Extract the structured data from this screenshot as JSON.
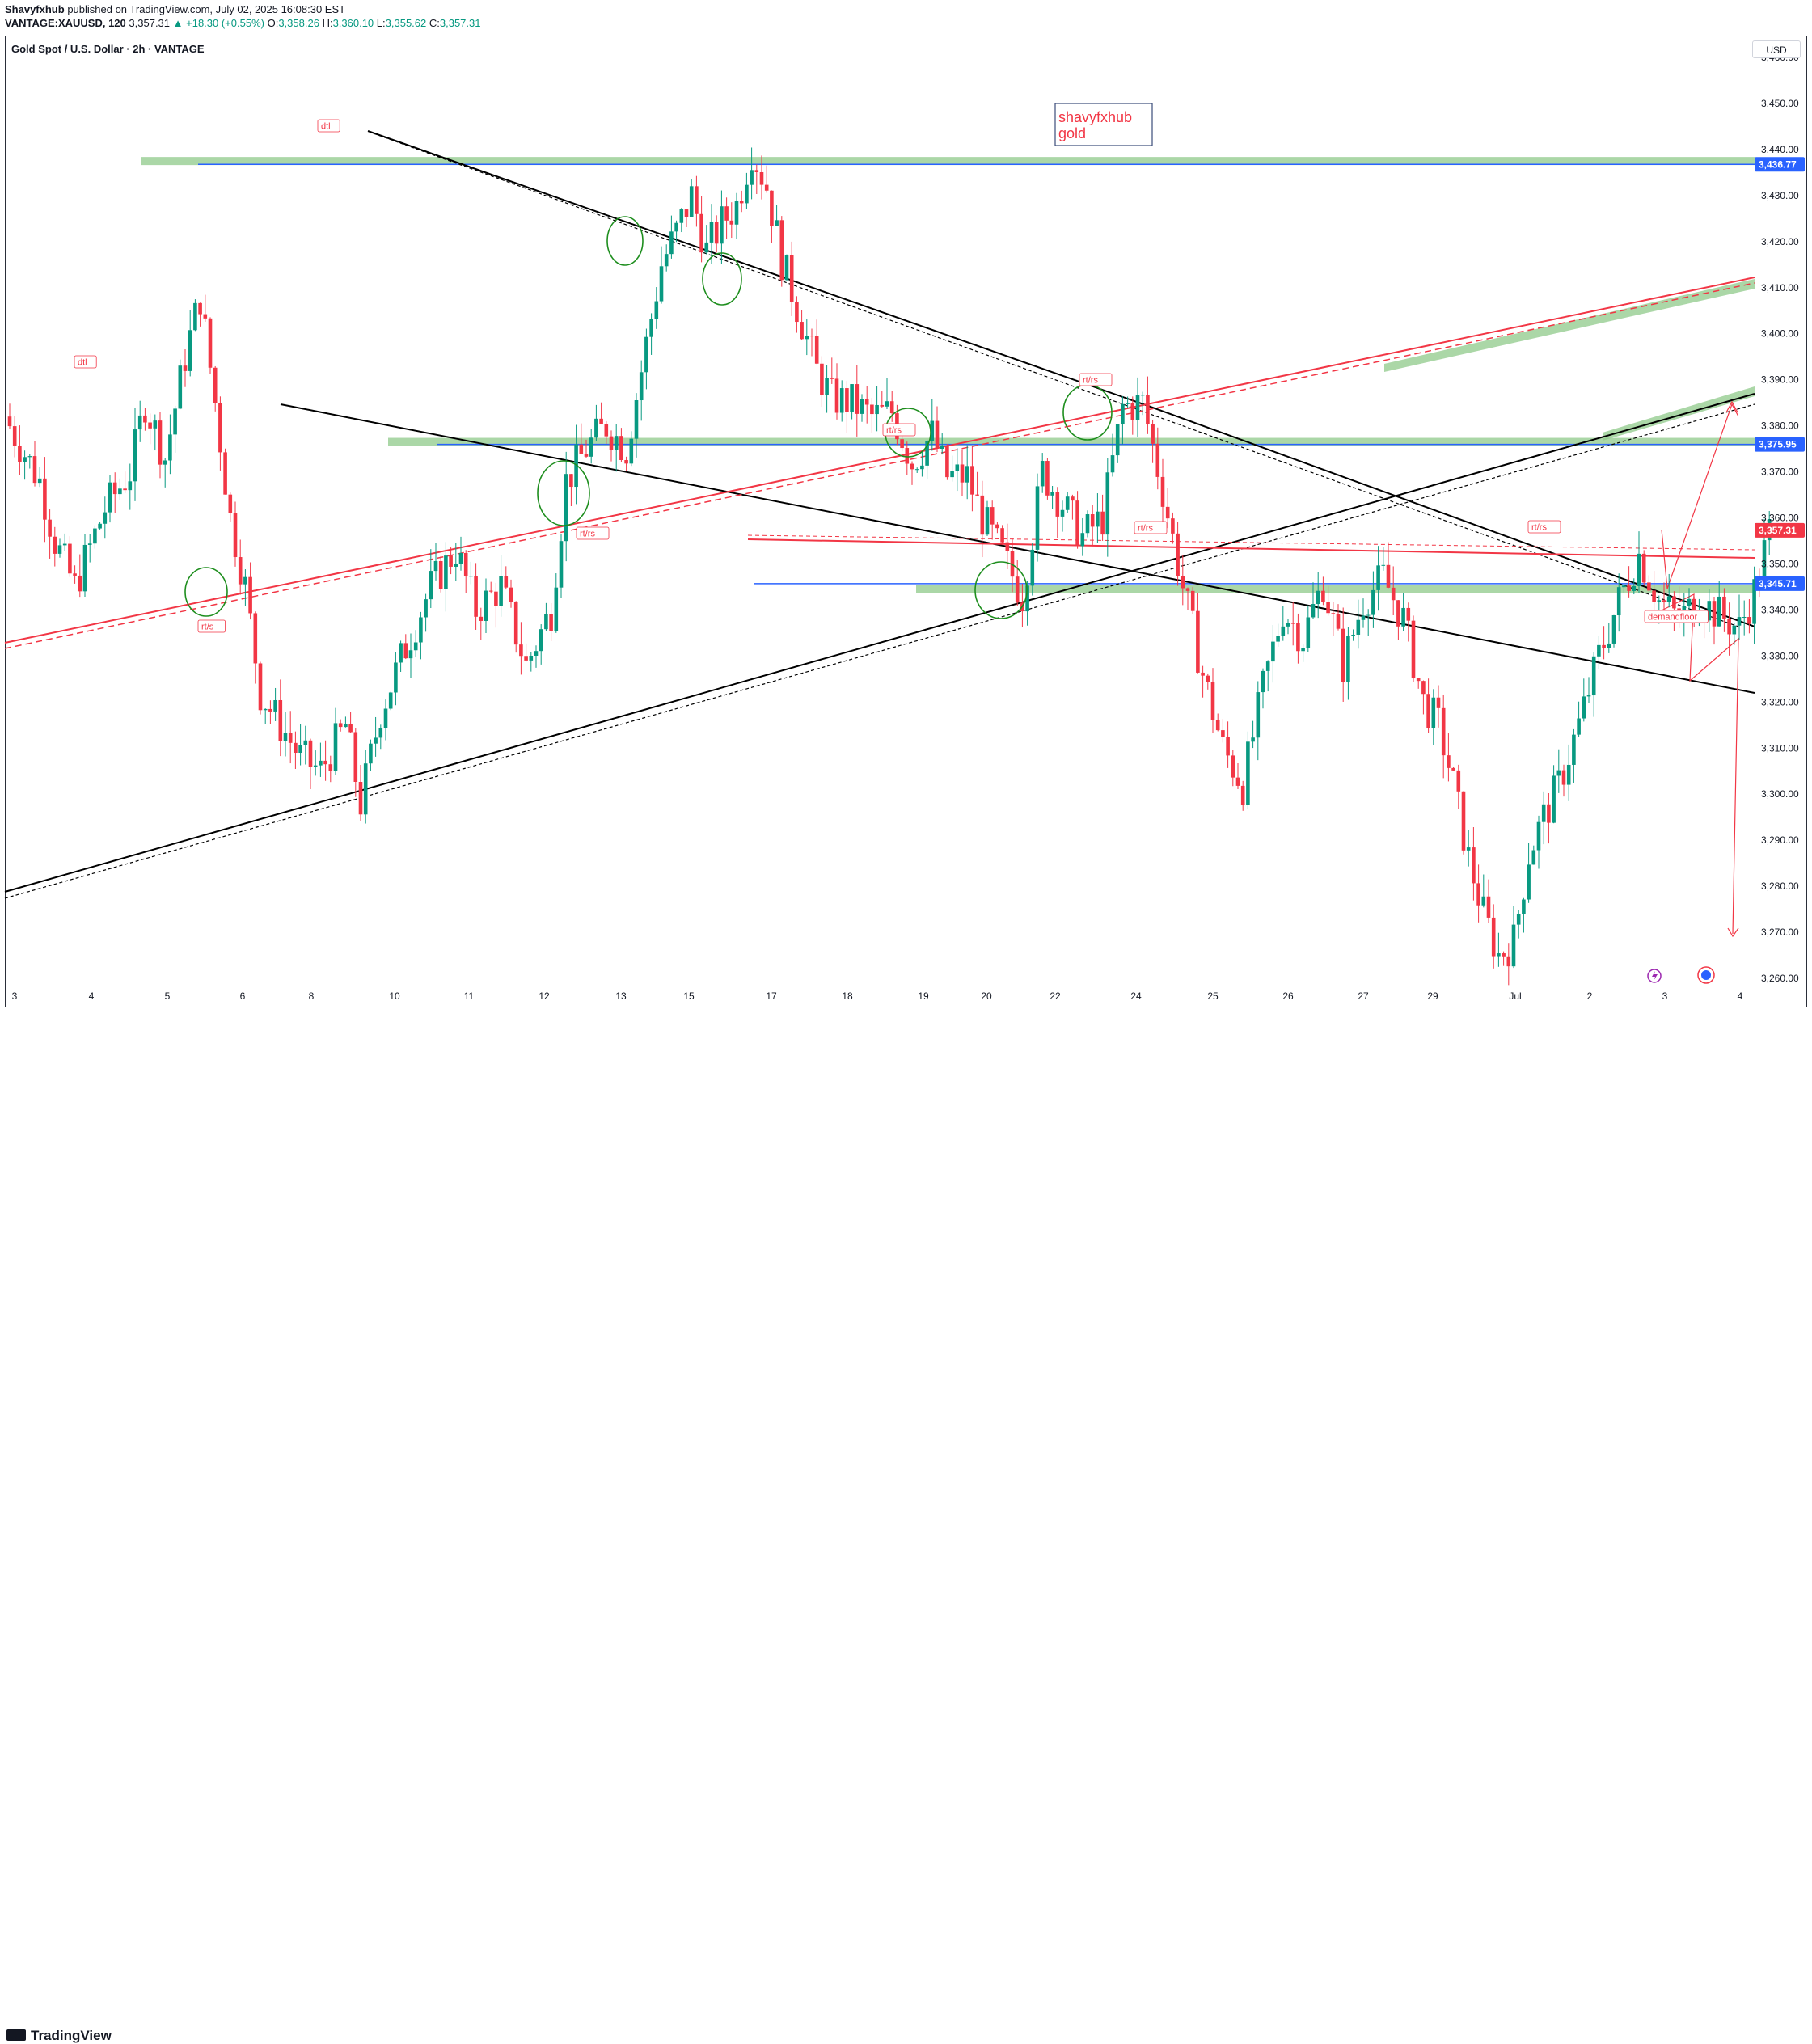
{
  "header": {
    "publisher": "Shavyfxhub",
    "published_text": "published on TradingView.com, July 02, 2025 16:08:30 EST",
    "symbol": "VANTAGE:XAUUSD, 120",
    "last": "3,357.31",
    "change": "▲ +18.30 (+0.55%)",
    "o_label": "O:",
    "o": "3,358.26",
    "h_label": "H:",
    "h": "3,360.10",
    "l_label": "L:",
    "l": "3,355.62",
    "c_label": "C:",
    "c": "3,357.31"
  },
  "chart_title": "Gold Spot / U.S. Dollar · 2h · VANTAGE",
  "currency_button": "USD",
  "footer_logo": "TradingView",
  "colors": {
    "up": "#089981",
    "down": "#f23645",
    "zone": "#8fc98a",
    "blue": "#2962ff",
    "red_line": "#f23645",
    "black": "#000000",
    "circle": "#1e8e1e"
  },
  "chart_data": {
    "type": "candlestick",
    "title": "Gold Spot / U.S. Dollar · 2h · VANTAGE",
    "currency": "USD",
    "ylim": [
      3255,
      3467
    ],
    "y_ticks": [
      "3,460.00",
      "3,450.00",
      "3,440.00",
      "3,430.00",
      "3,420.00",
      "3,410.00",
      "3,400.00",
      "3,390.00",
      "3,380.00",
      "3,370.00",
      "3,360.00",
      "3,350.00",
      "3,340.00",
      "3,330.00",
      "3,320.00",
      "3,310.00",
      "3,300.00",
      "3,290.00",
      "3,280.00",
      "3,270.00",
      "3,260.00"
    ],
    "y_tick_values": [
      3460,
      3450,
      3440,
      3430,
      3420,
      3410,
      3400,
      3390,
      3380,
      3370,
      3360,
      3350,
      3340,
      3330,
      3320,
      3310,
      3300,
      3290,
      3280,
      3270,
      3260
    ],
    "x_ticks": [
      "3",
      "4",
      "5",
      "6",
      "8",
      "10",
      "11",
      "12",
      "13",
      "15",
      "17",
      "18",
      "19",
      "20",
      "22",
      "24",
      "25",
      "26",
      "27",
      "29",
      "Jul",
      "2",
      "3",
      "4"
    ],
    "price_tags": [
      {
        "label": "3,436.77",
        "value": 3436.77,
        "color": "#2962ff"
      },
      {
        "label": "3,375.95",
        "value": 3375.95,
        "color": "#2962ff"
      },
      {
        "label": "3,357.31",
        "value": 3357.31,
        "color": "#f23645"
      },
      {
        "label": "3,345.71",
        "value": 3345.71,
        "color": "#2962ff"
      }
    ],
    "candles_keypoints": [
      [
        0,
        3380
      ],
      [
        6,
        3368
      ],
      [
        9,
        3355
      ],
      [
        13,
        3345
      ],
      [
        19,
        3362
      ],
      [
        24,
        3370
      ],
      [
        27,
        3385
      ],
      [
        31,
        3373
      ],
      [
        35,
        3395
      ],
      [
        38,
        3408
      ],
      [
        41,
        3385
      ],
      [
        44,
        3360
      ],
      [
        47,
        3345
      ],
      [
        50,
        3322
      ],
      [
        54,
        3315
      ],
      [
        58,
        3308
      ],
      [
        62,
        3305
      ],
      [
        67,
        3315
      ],
      [
        70,
        3298
      ],
      [
        74,
        3318
      ],
      [
        79,
        3332
      ],
      [
        84,
        3345
      ],
      [
        89,
        3353
      ],
      [
        93,
        3340
      ],
      [
        98,
        3345
      ],
      [
        103,
        3328
      ],
      [
        108,
        3340
      ],
      [
        111,
        3368
      ],
      [
        115,
        3375
      ],
      [
        119,
        3380
      ],
      [
        123,
        3375
      ],
      [
        126,
        3392
      ],
      [
        130,
        3415
      ],
      [
        133,
        3422
      ],
      [
        136,
        3430
      ],
      [
        139,
        3418
      ],
      [
        142,
        3424
      ],
      [
        145,
        3428
      ],
      [
        148,
        3440
      ],
      [
        151,
        3432
      ],
      [
        154,
        3416
      ],
      [
        157,
        3406
      ],
      [
        161,
        3392
      ],
      [
        164,
        3386
      ],
      [
        168,
        3385
      ],
      [
        172,
        3382
      ],
      [
        176,
        3383
      ],
      [
        180,
        3372
      ],
      [
        184,
        3378
      ],
      [
        187,
        3369
      ],
      [
        191,
        3369
      ],
      [
        194,
        3360
      ],
      [
        198,
        3352
      ],
      [
        202,
        3343
      ],
      [
        206,
        3370
      ],
      [
        210,
        3363
      ],
      [
        214,
        3356
      ],
      [
        218,
        3360
      ],
      [
        222,
        3384
      ],
      [
        226,
        3385
      ],
      [
        230,
        3366
      ],
      [
        234,
        3345
      ],
      [
        238,
        3326
      ],
      [
        242,
        3310
      ],
      [
        246,
        3302
      ],
      [
        250,
        3323
      ],
      [
        254,
        3340
      ],
      [
        258,
        3334
      ],
      [
        262,
        3346
      ],
      [
        266,
        3328
      ],
      [
        270,
        3342
      ],
      [
        274,
        3347
      ],
      [
        278,
        3338
      ],
      [
        282,
        3320
      ],
      [
        285,
        3315
      ],
      [
        288,
        3302
      ],
      [
        291,
        3286
      ],
      [
        294,
        3274
      ],
      [
        297,
        3265
      ],
      [
        300,
        3268
      ],
      [
        303,
        3287
      ],
      [
        306,
        3295
      ],
      [
        309,
        3302
      ],
      [
        313,
        3315
      ],
      [
        317,
        3330
      ],
      [
        321,
        3342
      ],
      [
        325,
        3352
      ],
      [
        329,
        3342
      ],
      [
        333,
        3338
      ],
      [
        337,
        3342
      ],
      [
        341,
        3339
      ],
      [
        345,
        3336
      ],
      [
        348,
        3344
      ],
      [
        351,
        3357
      ]
    ],
    "horizontal_zones": [
      {
        "name": "upper-supply-zone",
        "value": 3437.5
      },
      {
        "name": "mid-zone",
        "value": 3376.5
      },
      {
        "name": "lower-zone",
        "value": 3344.5
      }
    ],
    "annotations": {
      "tags": [
        "dtl",
        "dtl",
        "rt/s",
        "rt/rs",
        "rt/rs",
        "rt/rs",
        "rt/rs",
        "rt/rs",
        "demandfloor"
      ],
      "text_box": [
        "shavyfxhub",
        "gold"
      ]
    }
  }
}
